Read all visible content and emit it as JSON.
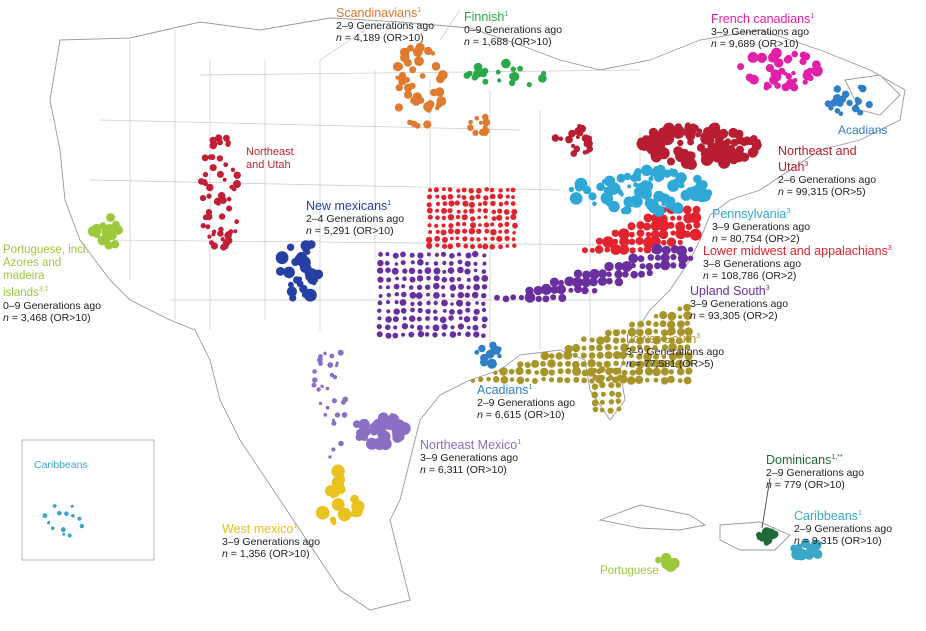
{
  "map": {
    "inset_label": "Caribbeans",
    "groups": [
      {
        "key": "scand",
        "title": "Scandinavians",
        "sup": "1",
        "gen": "2–9 Generations ago",
        "n": "4,189",
        "or": "(OR>10)",
        "color": "#e07a2e"
      },
      {
        "key": "finnish",
        "title": "Finnish",
        "sup": "1",
        "gen": "0–9 Generations ago",
        "n": "1,688",
        "or": "(OR>10)",
        "color": "#2aa84a"
      },
      {
        "key": "french",
        "title": "French canadians",
        "sup": "1",
        "gen": "3–9 Generations ago",
        "n": "9,689",
        "or": "(OR>10)",
        "color": "#e21fa8"
      },
      {
        "key": "acad_n",
        "title": "Acadians",
        "sup": "",
        "gen": "",
        "n": "",
        "or": "",
        "color": "#2f7fc8"
      },
      {
        "key": "ne_utah",
        "title": "Northeast and Utah",
        "sup": "3",
        "gen": "2–6 Generations ago",
        "n": "99,315",
        "or": "(OR>5)",
        "color": "#b81d32"
      },
      {
        "key": "ne_utah_w",
        "title": "Northeast and Utah",
        "sup": "",
        "gen": "",
        "n": "",
        "or": "",
        "color": "#c21f37"
      },
      {
        "key": "newmex",
        "title": "New mexicans",
        "sup": "1",
        "gen": "2–4 Generations ago",
        "n": "5,291",
        "or": "(OR>10)",
        "color": "#263fa3"
      },
      {
        "key": "penn",
        "title": "Pennsylvania",
        "sup": "3",
        "gen": "3–9 Generations ago",
        "n": "80,754",
        "or": "(OR>2)",
        "color": "#2fa8d8"
      },
      {
        "key": "lma",
        "title": "Lower midwest and appalachians",
        "sup": "3",
        "gen": "3–8 Generations ago",
        "n": "108,786",
        "or": "(OR>2)",
        "color": "#e3232e"
      },
      {
        "key": "upland",
        "title": "Upland South",
        "sup": "3",
        "gen": "3–9 Generations ago",
        "n": "93,305",
        "or": "(OR>2)",
        "color": "#6a2f9e"
      },
      {
        "key": "lower",
        "title": "Lower South",
        "sup": "3",
        "gen": "3–9 Generations ago",
        "n": "77,581",
        "or": "(OR>5)",
        "color": "#a8952a"
      },
      {
        "key": "acad_s",
        "title": "Acadians",
        "sup": "1",
        "gen": "2–9 Generations ago",
        "n": "6,615",
        "or": "(OR>10)",
        "color": "#2f7fc8"
      },
      {
        "key": "nemex",
        "title": "Northeast Mexico",
        "sup": "1",
        "gen": "3–9 Generations ago",
        "n": "6,311",
        "or": "(OR>10)",
        "color": "#8a6fc4"
      },
      {
        "key": "westmex",
        "title": "West mexico",
        "sup": "1",
        "gen": "3–9 Generations ago",
        "n": "1,356",
        "or": "(OR>10)",
        "color": "#e8c21f"
      },
      {
        "key": "port",
        "title": "Portuguese, incl. Azores and madeira islands",
        "sup": "3,‡",
        "gen": "0–9 Generations ago",
        "n": "3,468",
        "or": "(OR>10)",
        "color": "#9cc93a"
      },
      {
        "key": "dom",
        "title": "Dominicans",
        "sup": "1,**",
        "gen": "2–9 Generations ago",
        "n": "779",
        "or": "(OR>10)",
        "color": "#1f6b3a"
      },
      {
        "key": "carib",
        "title": "Caribbeans",
        "sup": "1",
        "gen": "2–9 Generations ago",
        "n": "9,315",
        "or": "(OR>10)",
        "color": "#3aa7c9"
      },
      {
        "key": "port_c",
        "title": "Portuguese",
        "sup": "",
        "gen": "",
        "n": "",
        "or": "",
        "color": "#9cc93a"
      }
    ]
  }
}
